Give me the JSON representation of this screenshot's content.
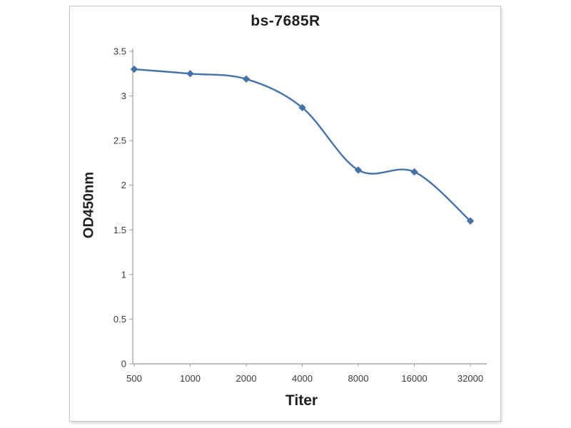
{
  "figure": {
    "background": "#ffffff",
    "frame_border_color": "#c6c6c6"
  },
  "chart_data": {
    "type": "line",
    "title": "bs-7685R",
    "xlabel": "Titer",
    "ylabel": "OD450nm",
    "categories": [
      "500",
      "1000",
      "2000",
      "4000",
      "8000",
      "16000",
      "32000"
    ],
    "values": [
      3.3,
      3.25,
      3.19,
      2.87,
      2.17,
      2.15,
      1.6
    ],
    "ylim": [
      0,
      3.5
    ],
    "ytick_step": 0.5,
    "ytick_labels": [
      "0",
      "0.5",
      "1",
      "1.5",
      "2",
      "2.5",
      "3",
      "3.5"
    ],
    "grid": false,
    "legend": null,
    "line_color": "#4572a7",
    "marker": "diamond",
    "marker_color": "#4572a7",
    "axis_color": "#9b9b9b",
    "tick_text_color": "#3a3a3a"
  }
}
